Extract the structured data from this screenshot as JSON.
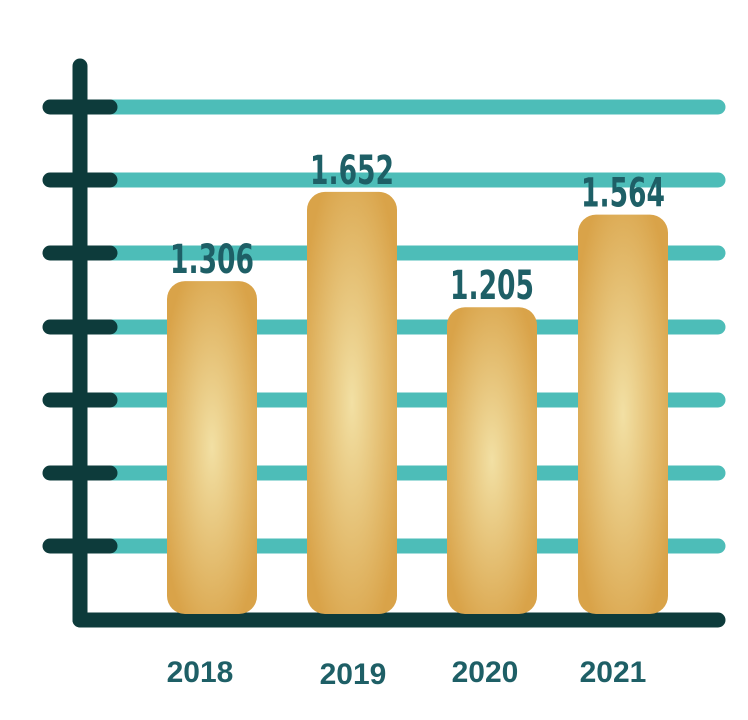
{
  "chart_data": {
    "type": "bar",
    "title": "",
    "xlabel": "",
    "ylabel": "",
    "categories": [
      "2018",
      "2019",
      "2020",
      "2021"
    ],
    "values": [
      1.306,
      1.652,
      1.205,
      1.564
    ],
    "value_labels": [
      "1.306",
      "1.652",
      "1.205",
      "1.564"
    ],
    "ylim": [
      0,
      2.0
    ],
    "grid": true,
    "tick_count": 7,
    "legend": "none"
  },
  "colors": {
    "axis": "#0d3b3b",
    "grid": "#4dbdb8",
    "bar_edge": "#d9a349",
    "bar_center": "#f2e0a4",
    "value_label": "#1e5f66",
    "category_label": "#1e5f66",
    "background": "#ffffff"
  }
}
